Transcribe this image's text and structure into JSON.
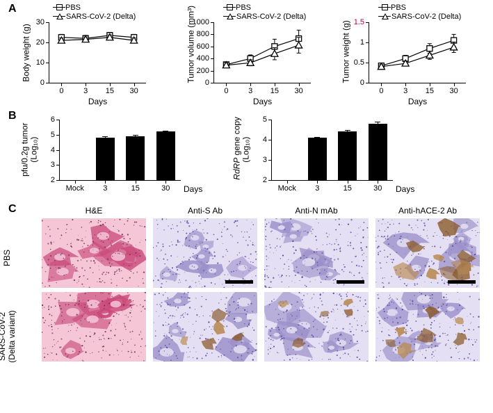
{
  "panelA": {
    "label": "A",
    "x_label": "Days",
    "x_ticks": [
      0,
      3,
      15,
      30
    ],
    "legend": [
      "PBS",
      "SARS-CoV-2 (Delta)"
    ],
    "charts": [
      {
        "y_label": "Body weight (g)",
        "ylim": [
          0,
          30
        ],
        "ytick_step": 10,
        "series": [
          {
            "marker": "square",
            "y": [
              22.5,
              22,
              23.5,
              22.5
            ],
            "err": [
              1.5,
              1.5,
              1.5,
              1.5
            ]
          },
          {
            "marker": "triangle",
            "y": [
              21,
              21.5,
              22.5,
              21
            ],
            "err": [
              1.2,
              1.2,
              1.2,
              1.2
            ]
          }
        ]
      },
      {
        "y_label": "Tumor volume (mm³)",
        "ylim": [
          0,
          1000
        ],
        "ytick_step": 200,
        "series": [
          {
            "marker": "square",
            "y": [
              300,
              400,
              600,
              730
            ],
            "err": [
              40,
              60,
              120,
              140
            ]
          },
          {
            "marker": "triangle",
            "y": [
              290,
              330,
              480,
              620
            ],
            "err": [
              40,
              50,
              100,
              130
            ]
          }
        ]
      },
      {
        "y_label": "Tumor weight (g)",
        "ylim": [
          0,
          1.5
        ],
        "ytick_step": 0.5,
        "y_top_label_color": "#c00040",
        "series": [
          {
            "marker": "square",
            "y": [
              0.42,
              0.6,
              0.85,
              1.05
            ],
            "err": [
              0.05,
              0.08,
              0.12,
              0.15
            ]
          },
          {
            "marker": "triangle",
            "y": [
              0.4,
              0.48,
              0.68,
              0.88
            ],
            "err": [
              0.05,
              0.06,
              0.1,
              0.13
            ]
          }
        ]
      }
    ]
  },
  "panelB": {
    "label": "B",
    "x_label": "Days",
    "x_cats": [
      "Mock",
      "3",
      "15",
      "30"
    ],
    "bar_color": "#000000",
    "charts": [
      {
        "y_label_lines": [
          "pfu/0.2g tumor",
          "(Log₁₀)"
        ],
        "ylim": [
          2,
          6
        ],
        "yticks": [
          2,
          3,
          4,
          5,
          6
        ],
        "values": [
          null,
          4.8,
          4.9,
          5.2
        ],
        "err": [
          0,
          0.08,
          0.1,
          0.08
        ]
      },
      {
        "y_label_lines": [
          "RdRP gene copy",
          "(Log₁₀)"
        ],
        "y_label_italic_first": true,
        "ylim": [
          2,
          5
        ],
        "yticks": [
          2,
          3,
          4,
          5
        ],
        "values": [
          null,
          4.1,
          4.4,
          4.8
        ],
        "err": [
          0,
          0.05,
          0.08,
          0.08
        ]
      }
    ]
  },
  "panelC": {
    "label": "C",
    "col_headers": [
      "H&E",
      "Anti-S Ab",
      "Anti-N mAb",
      "Anti-hACE-2 Ab"
    ],
    "row_headers": [
      "PBS",
      "SARS-CoV-2\n(Delta variant)"
    ],
    "stain_colors": {
      "HE_bg": "#f5c6d6",
      "HE_dark": "#c94a7a",
      "HE_nuclei": "#7a2d58",
      "IHC_bg": "#e4dff2",
      "IHC_tissue": "#9a8fc9",
      "IHC_nuclei": "#5b4ca3",
      "DAB": "#8a5a2a",
      "DAB_light": "#b88a52"
    },
    "scale_bar_color": "#000000"
  }
}
